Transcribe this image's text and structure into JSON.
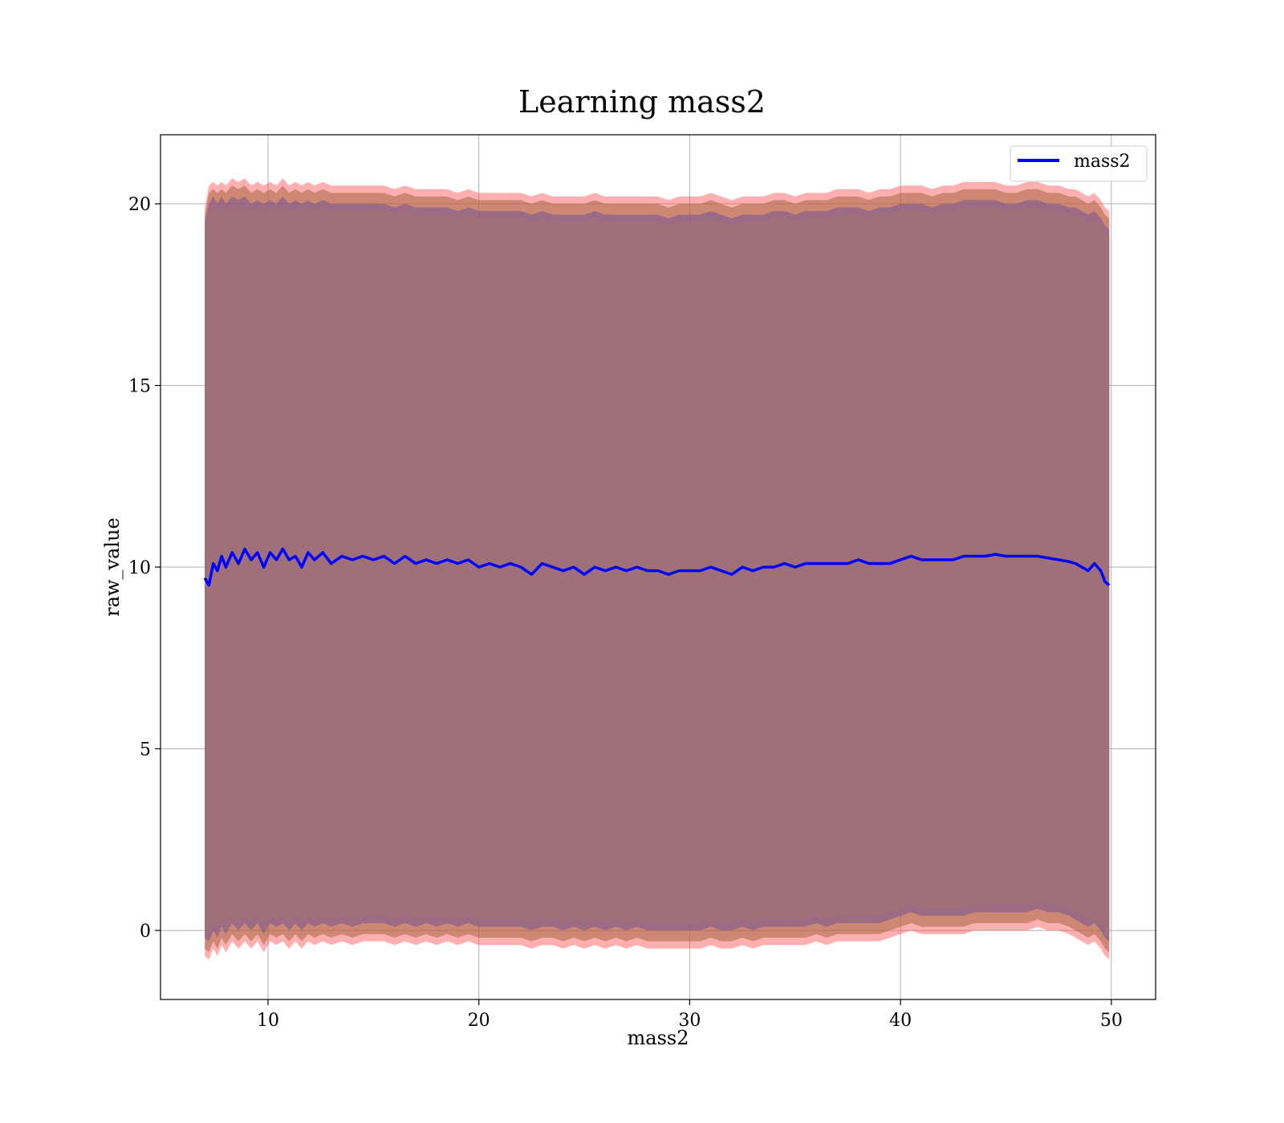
{
  "chart_data": {
    "type": "line",
    "title": "Learning mass2",
    "xlabel": "mass2",
    "ylabel": "raw_value",
    "xlim": [
      4.9,
      52.1
    ],
    "ylim": [
      -1.9,
      21.9
    ],
    "xticks": [
      10,
      20,
      30,
      40,
      50
    ],
    "yticks": [
      0,
      5,
      10,
      15,
      20
    ],
    "grid": true,
    "legend_position": "top-right",
    "series": [
      {
        "name": "mass2",
        "color": "#0000ff",
        "x": [
          7.0,
          7.2,
          7.4,
          7.6,
          7.8,
          8.0,
          8.3,
          8.6,
          8.9,
          9.2,
          9.5,
          9.8,
          10.1,
          10.4,
          10.7,
          11.0,
          11.3,
          11.6,
          11.9,
          12.2,
          12.6,
          13.0,
          13.5,
          14.0,
          14.5,
          15.0,
          15.5,
          16.0,
          16.5,
          17.0,
          17.5,
          18.0,
          18.5,
          19.0,
          19.5,
          20.0,
          20.5,
          21.0,
          21.5,
          22.0,
          22.5,
          23.0,
          23.5,
          24.0,
          24.5,
          25.0,
          25.5,
          26.0,
          26.5,
          27.0,
          27.5,
          28.0,
          28.5,
          29.0,
          29.5,
          30.0,
          30.5,
          31.0,
          31.5,
          32.0,
          32.5,
          33.0,
          33.5,
          34.0,
          34.5,
          35.0,
          35.5,
          36.0,
          36.5,
          37.0,
          37.5,
          38.0,
          38.5,
          39.0,
          39.5,
          40.0,
          40.5,
          41.0,
          41.5,
          42.0,
          42.5,
          43.0,
          43.5,
          44.0,
          44.5,
          45.0,
          45.5,
          46.0,
          46.5,
          47.0,
          47.5,
          48.0,
          48.3,
          48.6,
          48.9,
          49.2,
          49.5,
          49.7,
          49.9
        ],
        "values": [
          9.7,
          9.5,
          10.1,
          9.9,
          10.3,
          10.0,
          10.4,
          10.1,
          10.5,
          10.2,
          10.4,
          10.0,
          10.4,
          10.2,
          10.5,
          10.2,
          10.3,
          10.0,
          10.4,
          10.2,
          10.4,
          10.1,
          10.3,
          10.2,
          10.3,
          10.2,
          10.3,
          10.1,
          10.3,
          10.1,
          10.2,
          10.1,
          10.2,
          10.1,
          10.2,
          10.0,
          10.1,
          10.0,
          10.1,
          10.0,
          9.8,
          10.1,
          10.0,
          9.9,
          10.0,
          9.8,
          10.0,
          9.9,
          10.0,
          9.9,
          10.0,
          9.9,
          9.9,
          9.8,
          9.9,
          9.9,
          9.9,
          10.0,
          9.9,
          9.8,
          10.0,
          9.9,
          10.0,
          10.0,
          10.1,
          10.0,
          10.1,
          10.1,
          10.1,
          10.1,
          10.1,
          10.2,
          10.1,
          10.1,
          10.1,
          10.2,
          10.3,
          10.2,
          10.2,
          10.2,
          10.2,
          10.3,
          10.3,
          10.3,
          10.35,
          10.3,
          10.3,
          10.3,
          10.3,
          10.25,
          10.2,
          10.15,
          10.1,
          10.0,
          9.9,
          10.1,
          9.9,
          9.6,
          9.5
        ]
      }
    ],
    "bands": [
      {
        "color": "#ff4d4d",
        "opacity": 0.45,
        "upper": [
          19.9,
          20.5,
          20.6,
          20.5,
          20.6,
          20.5,
          20.7,
          20.6,
          20.7,
          20.5,
          20.6,
          20.5,
          20.6,
          20.5,
          20.7,
          20.5,
          20.6,
          20.5,
          20.6,
          20.5,
          20.6,
          20.5,
          20.5,
          20.5,
          20.5,
          20.5,
          20.5,
          20.4,
          20.5,
          20.4,
          20.4,
          20.4,
          20.4,
          20.3,
          20.4,
          20.3,
          20.3,
          20.3,
          20.3,
          20.3,
          20.2,
          20.3,
          20.2,
          20.2,
          20.2,
          20.2,
          20.3,
          20.2,
          20.2,
          20.2,
          20.2,
          20.2,
          20.2,
          20.1,
          20.2,
          20.2,
          20.2,
          20.3,
          20.2,
          20.1,
          20.2,
          20.2,
          20.2,
          20.3,
          20.3,
          20.2,
          20.3,
          20.3,
          20.3,
          20.4,
          20.4,
          20.4,
          20.3,
          20.4,
          20.4,
          20.5,
          20.5,
          20.5,
          20.4,
          20.5,
          20.5,
          20.6,
          20.6,
          20.6,
          20.6,
          20.5,
          20.5,
          20.6,
          20.6,
          20.5,
          20.5,
          20.4,
          20.4,
          20.3,
          20.2,
          20.3,
          20.1,
          19.9,
          19.8
        ],
        "lower": [
          -0.7,
          -0.8,
          -0.5,
          -0.7,
          -0.4,
          -0.6,
          -0.3,
          -0.5,
          -0.3,
          -0.5,
          -0.3,
          -0.6,
          -0.3,
          -0.4,
          -0.3,
          -0.5,
          -0.3,
          -0.5,
          -0.3,
          -0.4,
          -0.3,
          -0.4,
          -0.3,
          -0.4,
          -0.3,
          -0.3,
          -0.3,
          -0.4,
          -0.3,
          -0.4,
          -0.3,
          -0.4,
          -0.3,
          -0.4,
          -0.3,
          -0.4,
          -0.4,
          -0.4,
          -0.4,
          -0.4,
          -0.5,
          -0.4,
          -0.4,
          -0.5,
          -0.4,
          -0.5,
          -0.4,
          -0.5,
          -0.4,
          -0.5,
          -0.4,
          -0.5,
          -0.5,
          -0.5,
          -0.5,
          -0.5,
          -0.5,
          -0.4,
          -0.5,
          -0.5,
          -0.4,
          -0.5,
          -0.4,
          -0.4,
          -0.4,
          -0.4,
          -0.4,
          -0.3,
          -0.4,
          -0.3,
          -0.3,
          -0.3,
          -0.3,
          -0.3,
          -0.2,
          -0.1,
          0.0,
          -0.1,
          -0.1,
          -0.1,
          -0.1,
          -0.1,
          0.0,
          0.0,
          0.0,
          0.0,
          0.0,
          0.0,
          0.1,
          0.0,
          0.0,
          -0.1,
          -0.2,
          -0.3,
          -0.4,
          -0.3,
          -0.5,
          -0.7,
          -0.8
        ]
      },
      {
        "color": "#a6663f",
        "opacity": 0.55,
        "upper": [
          19.7,
          20.3,
          20.4,
          20.3,
          20.4,
          20.3,
          20.5,
          20.4,
          20.5,
          20.3,
          20.4,
          20.3,
          20.4,
          20.3,
          20.5,
          20.3,
          20.4,
          20.3,
          20.4,
          20.3,
          20.4,
          20.3,
          20.3,
          20.3,
          20.3,
          20.3,
          20.3,
          20.2,
          20.3,
          20.2,
          20.2,
          20.2,
          20.2,
          20.1,
          20.2,
          20.1,
          20.1,
          20.1,
          20.1,
          20.1,
          20.0,
          20.1,
          20.0,
          20.0,
          20.0,
          20.0,
          20.1,
          20.0,
          20.0,
          20.0,
          20.0,
          20.0,
          20.0,
          19.9,
          20.0,
          20.0,
          20.0,
          20.1,
          20.0,
          19.9,
          20.0,
          20.0,
          20.0,
          20.1,
          20.1,
          20.0,
          20.1,
          20.1,
          20.1,
          20.2,
          20.2,
          20.2,
          20.1,
          20.2,
          20.2,
          20.3,
          20.3,
          20.3,
          20.2,
          20.3,
          20.3,
          20.4,
          20.4,
          20.4,
          20.4,
          20.3,
          20.3,
          20.4,
          20.4,
          20.3,
          20.3,
          20.2,
          20.2,
          20.1,
          20.0,
          20.1,
          19.9,
          19.7,
          19.6
        ],
        "lower": [
          -0.5,
          -0.6,
          -0.3,
          -0.5,
          -0.2,
          -0.4,
          -0.1,
          -0.3,
          -0.1,
          -0.3,
          -0.1,
          -0.4,
          -0.1,
          -0.2,
          -0.1,
          -0.3,
          -0.1,
          -0.3,
          -0.1,
          -0.2,
          -0.1,
          -0.2,
          -0.1,
          -0.2,
          -0.1,
          -0.1,
          -0.1,
          -0.2,
          -0.1,
          -0.2,
          -0.1,
          -0.2,
          -0.1,
          -0.2,
          -0.1,
          -0.2,
          -0.2,
          -0.2,
          -0.2,
          -0.2,
          -0.3,
          -0.2,
          -0.2,
          -0.3,
          -0.2,
          -0.3,
          -0.2,
          -0.3,
          -0.2,
          -0.3,
          -0.2,
          -0.3,
          -0.3,
          -0.3,
          -0.3,
          -0.3,
          -0.3,
          -0.2,
          -0.3,
          -0.3,
          -0.2,
          -0.3,
          -0.2,
          -0.2,
          -0.2,
          -0.2,
          -0.2,
          -0.1,
          -0.2,
          -0.1,
          -0.1,
          -0.1,
          -0.1,
          -0.1,
          0.0,
          0.1,
          0.2,
          0.1,
          0.1,
          0.1,
          0.1,
          0.1,
          0.2,
          0.2,
          0.2,
          0.2,
          0.2,
          0.2,
          0.3,
          0.2,
          0.2,
          0.1,
          0.0,
          -0.1,
          -0.2,
          -0.1,
          -0.3,
          -0.5,
          -0.6
        ]
      },
      {
        "color": "#7b5a93",
        "opacity": 0.6,
        "upper": [
          19.5,
          20.0,
          20.2,
          20.0,
          20.2,
          20.0,
          20.2,
          20.1,
          20.2,
          20.0,
          20.1,
          20.0,
          20.1,
          20.0,
          20.2,
          20.0,
          20.1,
          20.0,
          20.1,
          20.0,
          20.1,
          20.0,
          20.0,
          20.0,
          20.0,
          20.0,
          20.0,
          19.9,
          20.0,
          19.9,
          19.9,
          19.9,
          19.9,
          19.8,
          19.9,
          19.8,
          19.8,
          19.8,
          19.8,
          19.8,
          19.7,
          19.8,
          19.7,
          19.7,
          19.7,
          19.7,
          19.8,
          19.7,
          19.7,
          19.7,
          19.7,
          19.7,
          19.7,
          19.6,
          19.7,
          19.7,
          19.7,
          19.8,
          19.7,
          19.6,
          19.7,
          19.7,
          19.7,
          19.8,
          19.8,
          19.7,
          19.8,
          19.8,
          19.8,
          19.9,
          19.9,
          19.9,
          19.8,
          19.9,
          19.9,
          20.0,
          20.0,
          20.0,
          19.9,
          20.0,
          20.0,
          20.1,
          20.1,
          20.1,
          20.1,
          20.0,
          20.0,
          20.1,
          20.1,
          20.0,
          20.0,
          19.9,
          19.9,
          19.8,
          19.7,
          19.8,
          19.6,
          19.4,
          19.3
        ],
        "lower": [
          -0.2,
          -0.3,
          0.0,
          -0.2,
          0.1,
          -0.1,
          0.2,
          0.0,
          0.2,
          0.0,
          0.2,
          -0.1,
          0.2,
          0.1,
          0.2,
          0.0,
          0.2,
          0.0,
          0.2,
          0.1,
          0.2,
          0.1,
          0.2,
          0.1,
          0.2,
          0.2,
          0.2,
          0.1,
          0.2,
          0.1,
          0.2,
          0.1,
          0.2,
          0.1,
          0.2,
          0.1,
          0.1,
          0.1,
          0.1,
          0.1,
          0.0,
          0.1,
          0.1,
          0.0,
          0.1,
          0.0,
          0.1,
          0.0,
          0.1,
          0.0,
          0.1,
          0.0,
          0.0,
          0.0,
          0.0,
          0.0,
          0.0,
          0.1,
          0.0,
          0.0,
          0.1,
          0.0,
          0.1,
          0.1,
          0.1,
          0.1,
          0.1,
          0.2,
          0.1,
          0.2,
          0.2,
          0.2,
          0.2,
          0.2,
          0.3,
          0.4,
          0.5,
          0.4,
          0.4,
          0.4,
          0.4,
          0.4,
          0.5,
          0.5,
          0.5,
          0.5,
          0.5,
          0.5,
          0.6,
          0.5,
          0.5,
          0.4,
          0.3,
          0.2,
          0.1,
          0.2,
          0.0,
          -0.2,
          -0.3
        ]
      },
      {
        "color": "#a0707a",
        "opacity": 1.0,
        "upper": [
          19.3,
          19.8,
          19.9,
          19.8,
          19.9,
          19.8,
          19.9,
          19.8,
          19.9,
          19.8,
          19.9,
          19.8,
          19.9,
          19.8,
          19.9,
          19.8,
          19.9,
          19.8,
          19.9,
          19.8,
          19.9,
          19.8,
          19.8,
          19.8,
          19.8,
          19.8,
          19.8,
          19.7,
          19.8,
          19.7,
          19.7,
          19.7,
          19.7,
          19.6,
          19.7,
          19.6,
          19.6,
          19.6,
          19.6,
          19.6,
          19.5,
          19.6,
          19.5,
          19.5,
          19.5,
          19.5,
          19.6,
          19.5,
          19.5,
          19.5,
          19.5,
          19.5,
          19.5,
          19.4,
          19.5,
          19.5,
          19.5,
          19.6,
          19.5,
          19.4,
          19.5,
          19.5,
          19.5,
          19.6,
          19.6,
          19.5,
          19.6,
          19.6,
          19.6,
          19.7,
          19.7,
          19.7,
          19.6,
          19.7,
          19.7,
          19.8,
          19.8,
          19.8,
          19.7,
          19.8,
          19.8,
          19.9,
          19.9,
          19.9,
          19.9,
          19.8,
          19.8,
          19.9,
          19.9,
          19.8,
          19.8,
          19.7,
          19.7,
          19.6,
          19.5,
          19.6,
          19.4,
          19.2,
          19.1
        ],
        "lower": [
          0.0,
          -0.1,
          0.2,
          0.0,
          0.3,
          0.1,
          0.4,
          0.2,
          0.4,
          0.2,
          0.4,
          0.1,
          0.4,
          0.3,
          0.4,
          0.2,
          0.4,
          0.2,
          0.4,
          0.3,
          0.4,
          0.3,
          0.4,
          0.3,
          0.4,
          0.4,
          0.4,
          0.3,
          0.4,
          0.3,
          0.4,
          0.3,
          0.4,
          0.3,
          0.4,
          0.3,
          0.3,
          0.3,
          0.3,
          0.3,
          0.2,
          0.3,
          0.3,
          0.2,
          0.3,
          0.2,
          0.3,
          0.2,
          0.3,
          0.2,
          0.3,
          0.2,
          0.2,
          0.2,
          0.2,
          0.2,
          0.2,
          0.3,
          0.2,
          0.2,
          0.3,
          0.2,
          0.3,
          0.3,
          0.3,
          0.3,
          0.3,
          0.4,
          0.3,
          0.4,
          0.4,
          0.4,
          0.4,
          0.4,
          0.5,
          0.6,
          0.7,
          0.6,
          0.6,
          0.6,
          0.6,
          0.6,
          0.7,
          0.7,
          0.7,
          0.7,
          0.7,
          0.7,
          0.8,
          0.7,
          0.7,
          0.6,
          0.5,
          0.4,
          0.3,
          0.4,
          0.2,
          0.0,
          -0.1
        ]
      }
    ]
  }
}
